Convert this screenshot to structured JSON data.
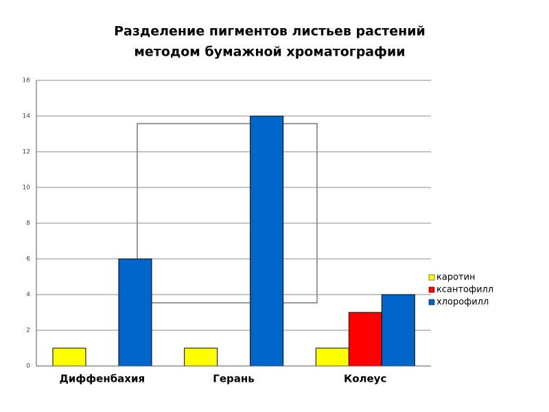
{
  "chart_data": {
    "type": "bar",
    "title": [
      "Разделение пигментов листьев растений",
      "методом бумажной хроматографии"
    ],
    "categories": [
      "Диффенбахия",
      "Герань",
      "Колеус"
    ],
    "series": [
      {
        "name": "каротин",
        "color": "#ffff00",
        "values": [
          1,
          1,
          1
        ]
      },
      {
        "name": "ксантофилл",
        "color": "#ff0000",
        "values": [
          0,
          0,
          3
        ]
      },
      {
        "name": "хлорофилл",
        "color": "#0066cc",
        "values": [
          6,
          14,
          4
        ]
      }
    ],
    "ylim": [
      0,
      16
    ],
    "yticks": [
      0,
      2,
      4,
      6,
      8,
      10,
      12,
      14,
      16
    ],
    "grid": true,
    "legend": "right"
  }
}
